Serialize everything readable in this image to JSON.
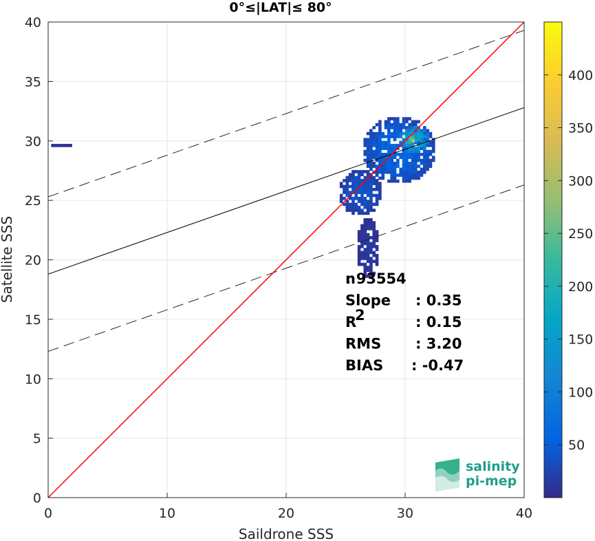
{
  "chart_data": {
    "type": "heatmap",
    "title": "0°≤|LAT|≤ 80°",
    "xlabel": "Saildrone SSS",
    "ylabel": "Satellite SSS",
    "xlim": [
      0,
      40
    ],
    "ylim": [
      0,
      40
    ],
    "x_ticks": [
      "0",
      "10",
      "20",
      "30",
      "40"
    ],
    "y_ticks": [
      "0",
      "5",
      "10",
      "15",
      "20",
      "25",
      "30",
      "35",
      "40"
    ],
    "grid": true,
    "colorbar": {
      "range": [
        0,
        450
      ],
      "ticks": [
        "50",
        "100",
        "150",
        "200",
        "250",
        "300",
        "350",
        "400"
      ],
      "colormap": "parula"
    },
    "lines": {
      "identity": {
        "slope": 1,
        "intercept": 0,
        "color": "#ff0000"
      },
      "fit": {
        "slope": 0.35,
        "intercept": 18.8,
        "color": "#000000"
      },
      "fit_upper": {
        "slope": 0.35,
        "intercept": 25.3,
        "style": "dashed"
      },
      "fit_lower": {
        "slope": 0.35,
        "intercept": 12.3,
        "style": "dashed"
      }
    },
    "density_clusters": [
      {
        "x": [
          0,
          1.9
        ],
        "y": [
          29.5,
          29.7
        ],
        "count": 10
      },
      {
        "x": [
          26.5,
          32.5
        ],
        "y": [
          26.5,
          32.0
        ],
        "count": 60
      },
      {
        "x": [
          29.5,
          32.0
        ],
        "y": [
          29.0,
          31.2
        ],
        "count": 180
      },
      {
        "x": [
          30.3,
          31.0
        ],
        "y": [
          29.9,
          30.4
        ],
        "count": 330
      },
      {
        "x": [
          24.5,
          28.0
        ],
        "y": [
          23.8,
          27.5
        ],
        "count": 40
      },
      {
        "x": [
          26.0,
          27.8
        ],
        "y": [
          18.5,
          23.5
        ],
        "count": 15
      }
    ],
    "stats": [
      {
        "label": "n",
        "value": ": 93554"
      },
      {
        "label": "Slope",
        "value": ": 0.35"
      },
      {
        "label": "R",
        "sup": "2",
        "value": ": 0.15"
      },
      {
        "label": "RMS",
        "value": ": 3.20"
      },
      {
        "label": "BIAS",
        "value": ": -0.47"
      }
    ]
  },
  "logo": {
    "line1": "salinity",
    "line2": "pi-mep"
  }
}
